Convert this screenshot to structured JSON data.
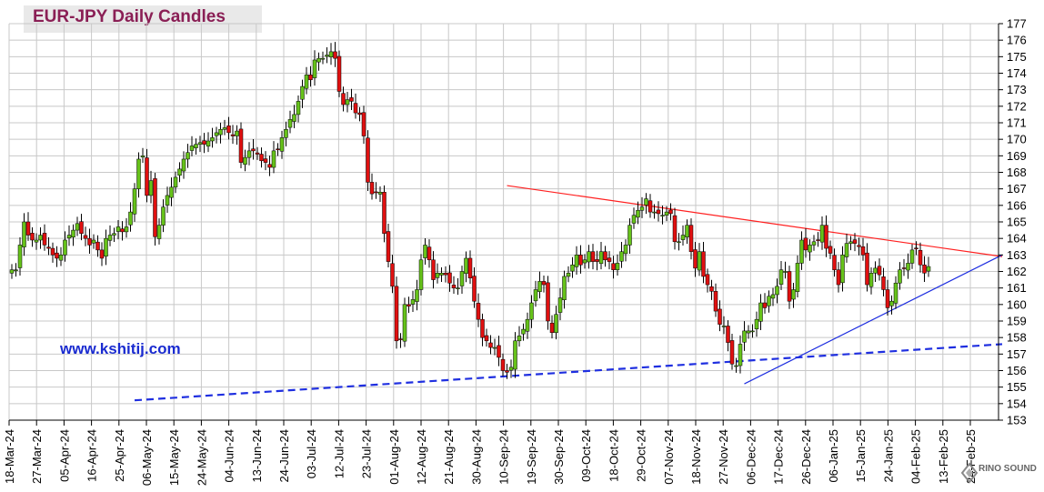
{
  "chart_data": {
    "type": "candlestick",
    "title": "EUR-JPY Daily  Candles",
    "watermark": "www.kshitij.com",
    "logo_text": "RINO SOUND",
    "ylim": [
      153,
      177
    ],
    "y_ticks": [
      153,
      154,
      155,
      156,
      157,
      158,
      159,
      160,
      161,
      162,
      163,
      164,
      165,
      166,
      167,
      168,
      169,
      170,
      171,
      172,
      173,
      174,
      175,
      176,
      177
    ],
    "x_tick_labels": [
      "18-Mar-24",
      "27-Mar-24",
      "05-Apr-24",
      "16-Apr-24",
      "25-Apr-24",
      "06-May-24",
      "15-May-24",
      "24-May-24",
      "04-Jun-24",
      "13-Jun-24",
      "24-Jun-24",
      "03-Jul-24",
      "12-Jul-24",
      "23-Jul-24",
      "01-Aug-24",
      "12-Aug-24",
      "21-Aug-24",
      "30-Aug-24",
      "10-Sep-24",
      "19-Sep-24",
      "30-Sep-24",
      "09-Oct-24",
      "18-Oct-24",
      "29-Oct-24",
      "07-Nov-24",
      "18-Nov-24",
      "27-Nov-24",
      "06-Dec-24",
      "17-Dec-24",
      "26-Dec-24",
      "06-Jan-25",
      "15-Jan-25",
      "24-Jan-25",
      "04-Feb-25",
      "13-Feb-25",
      "24-Feb-25"
    ],
    "grid": true,
    "colors": {
      "up": "#66c21a",
      "down": "#e01010",
      "resistance": "#ff2020",
      "support": "#1f2fe0",
      "dashed_support": "#1f2fe0"
    },
    "trendlines": [
      {
        "name": "resistance",
        "style": "solid",
        "from": {
          "day": 121,
          "y": 167.2
        },
        "to": {
          "day": 242,
          "y": 162.9
        }
      },
      {
        "name": "support",
        "style": "solid",
        "from": {
          "day": 179,
          "y": 155.2
        },
        "to": {
          "day": 242,
          "y": 163.0
        }
      },
      {
        "name": "long-term support",
        "style": "dashed",
        "from": {
          "day": 30,
          "y": 154.2
        },
        "to": {
          "day": 242,
          "y": 157.6
        }
      }
    ],
    "closes": [
      162.1,
      162.1,
      163.6,
      165.0,
      164.2,
      163.9,
      163.9,
      164.2,
      163.6,
      163.4,
      163.0,
      162.8,
      163.0,
      163.9,
      164.2,
      164.5,
      164.9,
      164.3,
      164.0,
      163.6,
      163.9,
      163.3,
      162.8,
      164.0,
      164.2,
      164.3,
      164.7,
      164.4,
      164.7,
      165.6,
      167.0,
      168.8,
      169.0,
      166.6,
      167.5,
      164.1,
      164.8,
      165.9,
      166.6,
      167.1,
      167.7,
      168.2,
      168.8,
      169.2,
      169.6,
      169.7,
      169.8,
      169.7,
      169.9,
      170.1,
      170.4,
      170.6,
      170.7,
      170.4,
      170.2,
      170.5,
      168.6,
      168.9,
      169.3,
      169.3,
      169.1,
      168.7,
      168.6,
      168.3,
      169.3,
      169.4,
      170.1,
      170.6,
      171.2,
      171.5,
      172.3,
      173.2,
      173.9,
      173.6,
      174.8,
      174.9,
      174.9,
      175.1,
      175.3,
      174.9,
      172.9,
      172.1,
      172.4,
      172.3,
      171.6,
      171.5,
      170.2,
      167.4,
      166.7,
      166.8,
      166.8,
      164.3,
      162.6,
      161.1,
      157.8,
      157.9,
      160.0,
      159.9,
      160.3,
      160.9,
      162.7,
      163.6,
      162.7,
      161.5,
      161.9,
      161.9,
      161.8,
      161.3,
      161.0,
      161.0,
      162.0,
      162.8,
      161.6,
      160.2,
      159.1,
      158.0,
      157.8,
      157.4,
      157.4,
      156.8,
      156.0,
      155.9,
      156.2,
      157.8,
      158.1,
      158.5,
      159.1,
      160.1,
      160.9,
      161.4,
      161.2,
      159.0,
      158.3,
      159.4,
      160.4,
      161.7,
      161.9,
      162.4,
      163.0,
      162.4,
      162.7,
      163.2,
      162.6,
      162.6,
      163.2,
      162.7,
      162.6,
      162.1,
      162.5,
      163.2,
      163.6,
      164.8,
      165.4,
      165.7,
      165.9,
      166.4,
      165.6,
      165.6,
      165.5,
      165.4,
      165.6,
      165.5,
      163.8,
      163.8,
      164.2,
      164.8,
      163.2,
      162.2,
      163.2,
      161.7,
      161.2,
      160.8,
      159.6,
      158.8,
      158.7,
      157.7,
      156.4,
      156.3,
      157.6,
      158.4,
      158.4,
      158.4,
      159.1,
      160.1,
      159.8,
      160.5,
      160.6,
      161.1,
      162.1,
      162.0,
      160.2,
      160.9,
      162.5,
      163.9,
      163.3,
      163.6,
      163.8,
      163.9,
      164.8,
      163.4,
      163.1,
      162.1,
      161.2,
      163.0,
      163.7,
      163.8,
      163.7,
      163.5,
      163.0,
      161.2,
      161.9,
      162.2,
      161.8,
      160.9,
      159.8,
      160.2,
      161.3,
      162.1,
      162.2,
      162.5,
      163.3,
      163.4,
      162.4,
      161.9,
      162.3
    ]
  }
}
